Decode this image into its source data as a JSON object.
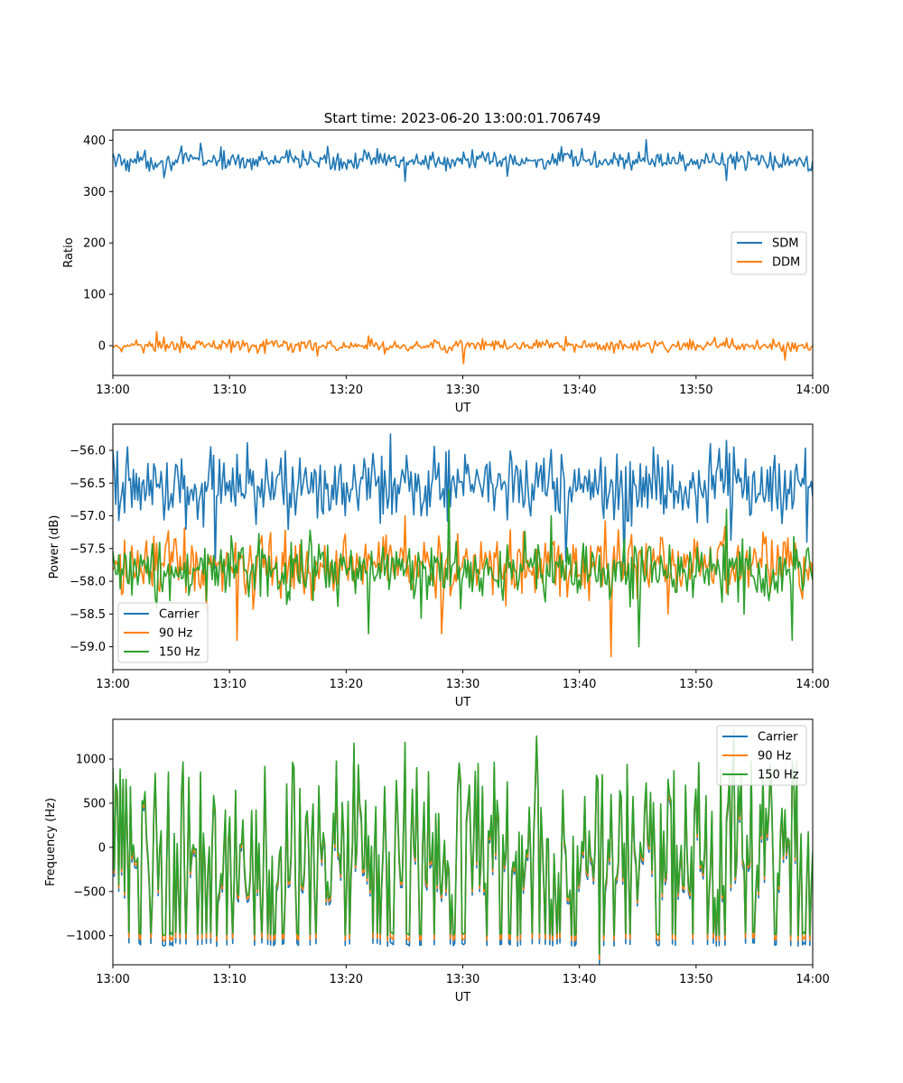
{
  "figure": {
    "title": "Start time: 2023-06-20 13:00:01.706749"
  },
  "chart_data": [
    {
      "type": "line",
      "title": "Start time: 2023-06-20 13:00:01.706749",
      "xlabel": "UT",
      "ylabel": "Ratio",
      "xlim": [
        "13:00",
        "14:00"
      ],
      "xticks": [
        "13:00",
        "13:10",
        "13:20",
        "13:30",
        "13:40",
        "13:50",
        "14:00"
      ],
      "ylim": [
        -58,
        420
      ],
      "yticks": [
        0,
        100,
        200,
        300,
        400
      ],
      "ytick_labels": [
        "0",
        "100",
        "200",
        "300",
        "400"
      ],
      "legend": "center-right",
      "grid": false,
      "series": [
        {
          "name": "SDM",
          "color": "#1f77b4",
          "mean": 360,
          "noise": 14,
          "spikes": [
            [
              35,
              327
            ],
            [
              60,
              394
            ],
            [
              130,
              380
            ],
            [
              200,
              320
            ],
            [
              270,
              330
            ],
            [
              365,
              401
            ],
            [
              420,
              322
            ],
            [
              470,
              366
            ]
          ]
        },
        {
          "name": "DDM",
          "color": "#ff7f0e",
          "mean": 0,
          "noise": 9,
          "spikes": [
            [
              6,
              -12
            ],
            [
              30,
              27
            ],
            [
              140,
              -20
            ],
            [
              240,
              -35
            ],
            [
              310,
              18
            ],
            [
              420,
              15
            ],
            [
              460,
              -28
            ]
          ]
        }
      ]
    },
    {
      "type": "line",
      "xlabel": "UT",
      "ylabel": "Power (dB)",
      "xlim": [
        "13:00",
        "14:00"
      ],
      "xticks": [
        "13:00",
        "13:10",
        "13:20",
        "13:30",
        "13:40",
        "13:50",
        "14:00"
      ],
      "ylim": [
        -59.35,
        -55.6
      ],
      "yticks": [
        -59.0,
        -58.5,
        -58.0,
        -57.5,
        -57.0,
        -56.5,
        -56.0
      ],
      "ytick_labels": [
        "−59.0",
        "−58.5",
        "−58.0",
        "−57.5",
        "−57.0",
        "−56.5",
        "−56.0"
      ],
      "legend": "lower-left",
      "grid": false,
      "series": [
        {
          "name": "Carrier",
          "color": "#1f77b4",
          "mean": -56.55,
          "noise": 0.38,
          "spikes": [
            [
              0,
              -56.0
            ],
            [
              70,
              -57.8
            ],
            [
              190,
              -55.75
            ],
            [
              230,
              -56.0
            ],
            [
              310,
              -57.7
            ],
            [
              350,
              -57.9
            ],
            [
              370,
              -55.95
            ],
            [
              420,
              -55.85
            ],
            [
              475,
              -57.4
            ]
          ]
        },
        {
          "name": "90 Hz",
          "color": "#ff7f0e",
          "mean": -57.75,
          "noise": 0.35,
          "spikes": [
            [
              85,
              -58.9
            ],
            [
              200,
              -57.0
            ],
            [
              225,
              -58.8
            ],
            [
              341,
              -59.15
            ],
            [
              380,
              -58.5
            ],
            [
              460,
              -57.4
            ]
          ]
        },
        {
          "name": "150 Hz",
          "color": "#2ca02c",
          "mean": -57.85,
          "noise": 0.33,
          "spikes": [
            [
              175,
              -58.8
            ],
            [
              230,
              -56.6
            ],
            [
              300,
              -57.0
            ],
            [
              360,
              -59.0
            ],
            [
              420,
              -56.9
            ],
            [
              465,
              -58.9
            ]
          ]
        }
      ]
    },
    {
      "type": "line",
      "xlabel": "UT",
      "ylabel": "Frequency (Hz)",
      "xlim": [
        "13:00",
        "14:00"
      ],
      "xticks": [
        "13:00",
        "13:10",
        "13:20",
        "13:30",
        "13:40",
        "13:50",
        "14:00"
      ],
      "ylim": [
        -1330,
        1450
      ],
      "yticks": [
        -1000,
        -500,
        0,
        500,
        1000
      ],
      "ytick_labels": [
        "−1000",
        "−500",
        "0",
        "500",
        "1000"
      ],
      "legend": "upper-right",
      "grid": false,
      "series": [
        {
          "name": "Carrier",
          "color": "#1f77b4",
          "offset": -120
        },
        {
          "name": "90 Hz",
          "color": "#ff7f0e",
          "offset": -60
        },
        {
          "name": "150 Hz",
          "color": "#2ca02c",
          "offset": 0
        }
      ],
      "base_signal": {
        "points": 480,
        "range": [
          -1000,
          1000
        ],
        "spikes": [
          [
            0,
            900
          ],
          [
            165,
            1180
          ],
          [
            200,
            1190
          ],
          [
            250,
            950
          ],
          [
            290,
            1260
          ],
          [
            333,
            -1210
          ],
          [
            425,
            1330
          ],
          [
            465,
            980
          ]
        ]
      }
    }
  ]
}
